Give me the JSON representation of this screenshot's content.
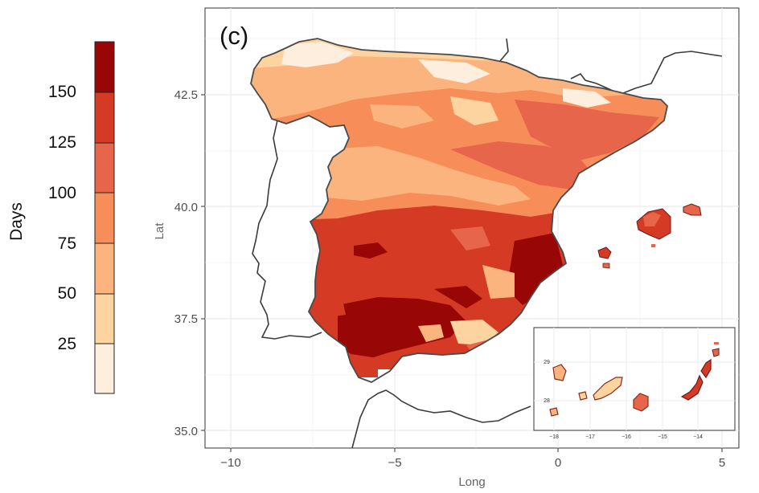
{
  "panel_label": "(c)",
  "legend": {
    "title": "Days",
    "labels": [
      "25",
      "50",
      "75",
      "100",
      "125",
      "150"
    ],
    "colors": [
      "#fdeedd",
      "#fdd4a0",
      "#fcb47e",
      "#f78d58",
      "#e7654a",
      "#d43a24",
      "#990606"
    ]
  },
  "axes": {
    "x_title": "Long",
    "y_title": "Lat",
    "x_ticks": [
      "−10",
      "−5",
      "0",
      "5"
    ],
    "y_ticks": [
      "35.0",
      "37.5",
      "40.0",
      "42.5"
    ]
  },
  "inset": {
    "x_ticks": [
      "−18",
      "−17",
      "−16",
      "−15",
      "−14"
    ],
    "y_ticks": [
      "29",
      "28"
    ]
  },
  "colors": {
    "grid": "#ebebeb",
    "coast": "#3a3a3a",
    "panel_border": "#333333"
  }
}
